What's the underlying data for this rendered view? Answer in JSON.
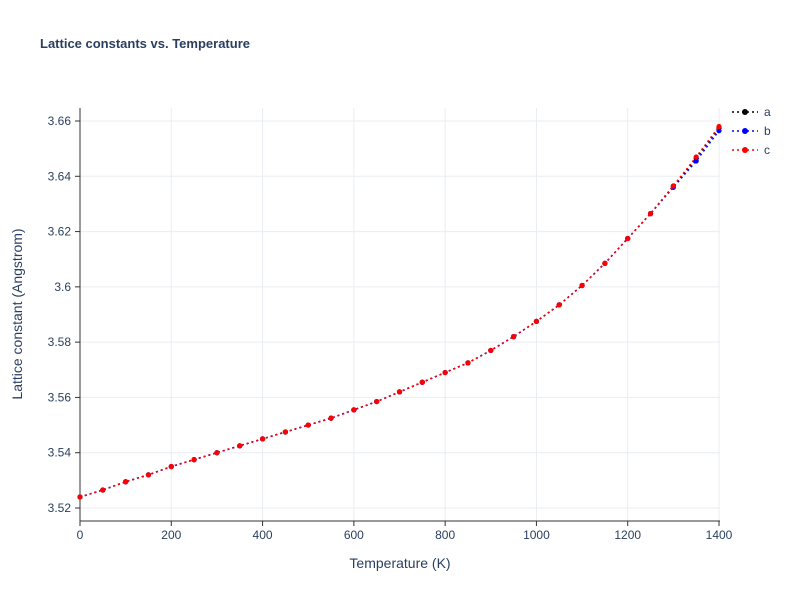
{
  "chart_data": {
    "type": "line",
    "title": "Lattice constants vs. Temperature",
    "xlabel": "Temperature (K)",
    "ylabel": "Lattice constant (Angstrom)",
    "xlim": [
      0,
      1400
    ],
    "ylim": [
      3.52,
      3.66
    ],
    "x_ticks": [
      0,
      200,
      400,
      600,
      800,
      1000,
      1200,
      1400
    ],
    "x_tick_labels": [
      "0",
      "200",
      "400",
      "600",
      "800",
      "1000",
      "1200",
      "1400"
    ],
    "y_ticks": [
      3.52,
      3.54,
      3.56,
      3.58,
      3.6,
      3.62,
      3.64,
      3.66
    ],
    "y_tick_labels": [
      "3.52",
      "3.54",
      "3.56",
      "3.58",
      "3.6",
      "3.62",
      "3.64",
      "3.66"
    ],
    "grid": true,
    "legend_position": "top-right",
    "line_style": "dotted",
    "marker": "circle",
    "x": [
      0,
      50,
      100,
      150,
      200,
      250,
      300,
      350,
      400,
      450,
      500,
      550,
      600,
      650,
      700,
      750,
      800,
      850,
      900,
      950,
      1000,
      1050,
      1100,
      1150,
      1200,
      1250,
      1300,
      1350,
      1400
    ],
    "series": [
      {
        "name": "a",
        "color": "#000000",
        "values": [
          3.524,
          3.5265,
          3.5295,
          3.532,
          3.535,
          3.5375,
          3.54,
          3.5425,
          3.545,
          3.5475,
          3.55,
          3.5525,
          3.5555,
          3.5585,
          3.562,
          3.5655,
          3.569,
          3.5725,
          3.577,
          3.582,
          3.5875,
          3.5935,
          3.6005,
          3.6085,
          3.6175,
          3.6265,
          3.6365,
          3.6465,
          3.6575
        ]
      },
      {
        "name": "b",
        "color": "#0000ff",
        "values": [
          3.524,
          3.5265,
          3.5295,
          3.532,
          3.535,
          3.5375,
          3.54,
          3.5425,
          3.545,
          3.5475,
          3.55,
          3.5525,
          3.5555,
          3.5585,
          3.562,
          3.5655,
          3.569,
          3.5725,
          3.577,
          3.582,
          3.5875,
          3.5935,
          3.6005,
          3.6085,
          3.6175,
          3.6265,
          3.636,
          3.6455,
          3.6565
        ]
      },
      {
        "name": "c",
        "color": "#ff0000",
        "values": [
          3.524,
          3.5265,
          3.5295,
          3.532,
          3.535,
          3.5375,
          3.54,
          3.5425,
          3.545,
          3.5475,
          3.55,
          3.5525,
          3.5555,
          3.5585,
          3.562,
          3.5655,
          3.569,
          3.5725,
          3.577,
          3.582,
          3.5875,
          3.5935,
          3.6005,
          3.6085,
          3.6175,
          3.6265,
          3.6365,
          3.647,
          3.658
        ]
      }
    ]
  },
  "styles": {
    "title_color": "#2a3f5f",
    "axis_text_color": "#2a3f5f",
    "grid_color": "#e9edf2",
    "spine_color": "#333333",
    "background_color": "#ffffff"
  }
}
